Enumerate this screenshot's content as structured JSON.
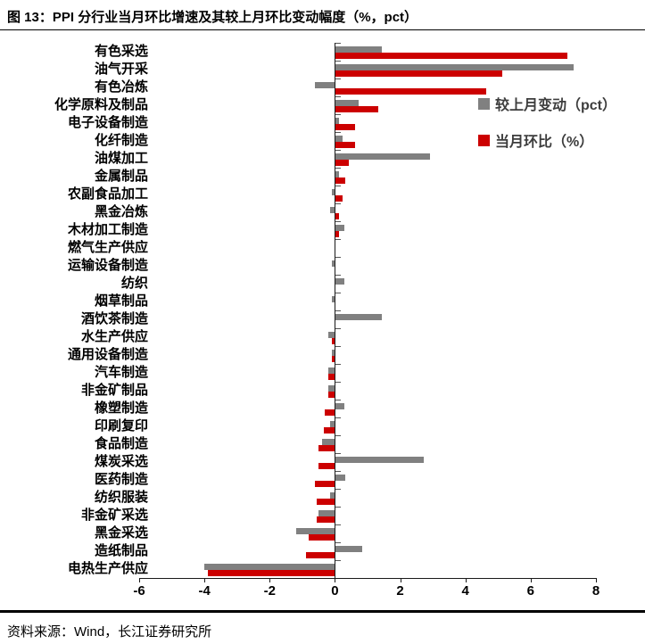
{
  "header": {
    "title": "图  13：PPI 分行业当月环比增速及其较上月环比变动幅度（%，pct）"
  },
  "legend": {
    "items": [
      {
        "label": "较上月变动（pct）",
        "color": "#808080"
      },
      {
        "label": "当月环比（%）",
        "color": "#cc0000"
      }
    ]
  },
  "footer": {
    "source": "资料来源：Wind，长江证券研究所"
  },
  "chart_data": {
    "type": "bar",
    "orientation": "horizontal",
    "title": "图 13：PPI 分行业当月环比增速及其较上月环比变动幅度（%，pct）",
    "categories": [
      "有色采选",
      "油气开采",
      "有色冶炼",
      "化学原料及制品",
      "电子设备制造",
      "化纤制造",
      "油煤加工",
      "金属制品",
      "农副食品加工",
      "黑金冶炼",
      "木材加工制造",
      "燃气生产供应",
      "运输设备制造",
      "纺织",
      "烟草制品",
      "酒饮茶制造",
      "水生产供应",
      "通用设备制造",
      "汽车制造",
      "非金矿制品",
      "橡塑制造",
      "印刷复印",
      "食品制造",
      "煤炭采选",
      "医药制造",
      "纺织服装",
      "非金矿采选",
      "黑金采选",
      "造纸制品",
      "电热生产供应"
    ],
    "series": [
      {
        "name": "较上月变动（pct）",
        "color": "#808080",
        "values": [
          1.4,
          7.3,
          -0.6,
          0.7,
          0.1,
          0.2,
          2.9,
          0.1,
          -0.1,
          -0.15,
          0.25,
          0,
          -0.1,
          0.25,
          -0.1,
          1.4,
          -0.2,
          -0.1,
          -0.2,
          -0.2,
          0.25,
          -0.15,
          -0.4,
          2.7,
          0.3,
          -0.15,
          -0.5,
          -1.2,
          0.8,
          -4.0
        ]
      },
      {
        "name": "当月环比（%）",
        "color": "#cc0000",
        "values": [
          7.1,
          5.1,
          4.6,
          1.3,
          0.6,
          0.6,
          0.4,
          0.3,
          0.2,
          0.1,
          0.1,
          0,
          0,
          0,
          0,
          0,
          -0.1,
          -0.1,
          -0.2,
          -0.2,
          -0.3,
          -0.35,
          -0.5,
          -0.5,
          -0.6,
          -0.55,
          -0.55,
          -0.8,
          -0.9,
          -3.9
        ]
      }
    ],
    "xlim": [
      -6,
      8
    ],
    "xticks": [
      "-6",
      "-4",
      "-2",
      "0",
      "2",
      "4",
      "6",
      "8"
    ],
    "grid": false,
    "legend_position": "upper-right-inside",
    "xlabel": "",
    "ylabel": ""
  }
}
